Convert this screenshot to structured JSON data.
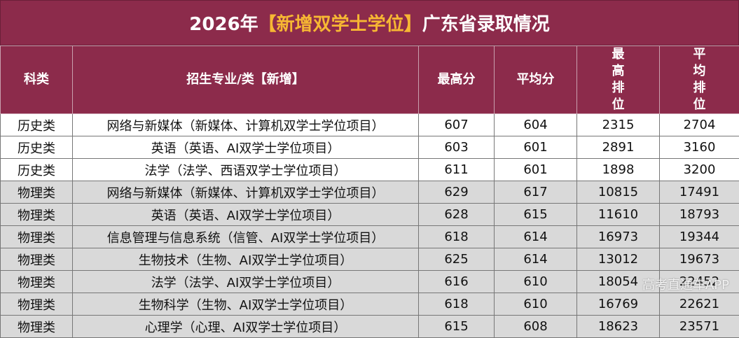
{
  "header": {
    "title_prefix": "2026年",
    "title_highlight": "【新增双学士学位】",
    "title_suffix": "广东省录取情况"
  },
  "table": {
    "columns": [
      "科类",
      "招生专业/类【新增】",
      "最高分",
      "平均分",
      "最高排位",
      "平均排位"
    ],
    "rows": [
      [
        "历史类",
        "网络与新媒体（新媒体、计算机双学士学位项目）",
        607,
        604,
        2315,
        2704
      ],
      [
        "历史类",
        "英语（英语、AI双学士学位项目）",
        603,
        601,
        2891,
        3160
      ],
      [
        "历史类",
        "法学（法学、西语双学士学位项目）",
        611,
        601,
        1898,
        3200
      ],
      [
        "物理类",
        "网络与新媒体（新媒体、计算机双学士学位项目）",
        629,
        617,
        10815,
        17491
      ],
      [
        "物理类",
        "英语（英语、AI双学士学位项目）",
        628,
        615,
        11610,
        18793
      ],
      [
        "物理类",
        "信息管理与信息系统（信管、AI双学士学位项目）",
        618,
        614,
        16973,
        19344
      ],
      [
        "物理类",
        "生物技术（生物、AI双学士学位项目）",
        625,
        614,
        13012,
        19673
      ],
      [
        "物理类",
        "法学（法学、AI双学士学位项目）",
        616,
        610,
        18054,
        22452
      ],
      [
        "物理类",
        "生物科学（生物、AI双学士学位项目）",
        618,
        610,
        16769,
        22621
      ],
      [
        "物理类",
        "心理学（心理、AI双学士学位项目）",
        615,
        608,
        18623,
        23571
      ]
    ]
  },
  "watermark": "高考直通车APP"
}
